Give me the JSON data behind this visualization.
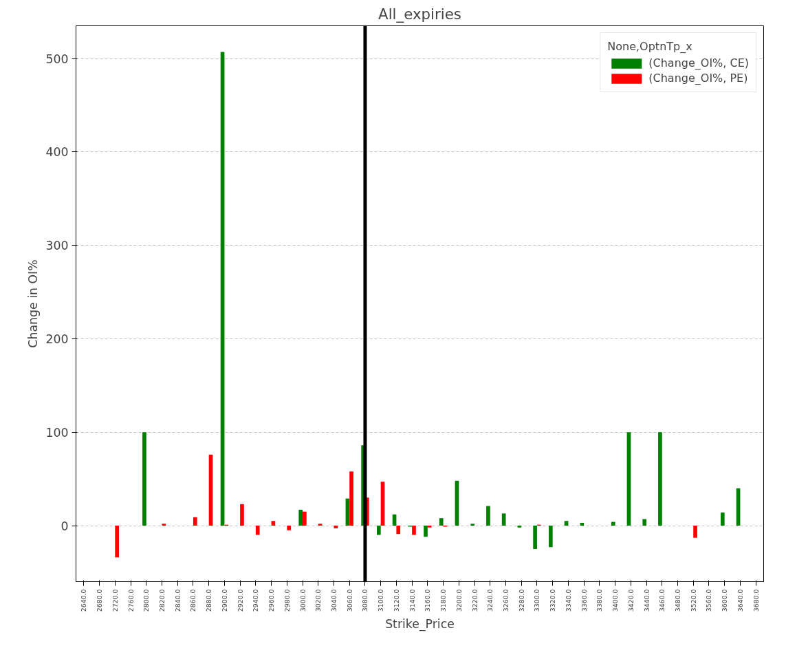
{
  "chart_data": {
    "type": "bar",
    "title": "All_expiries",
    "xlabel": "Strike_Price",
    "ylabel": "Change in OI%",
    "legend_title": "None,OptnTp_x",
    "categories": [
      "2640.0",
      "2680.0",
      "2720.0",
      "2760.0",
      "2800.0",
      "2820.0",
      "2840.0",
      "2860.0",
      "2880.0",
      "2900.0",
      "2920.0",
      "2940.0",
      "2960.0",
      "2980.0",
      "3000.0",
      "3020.0",
      "3040.0",
      "3060.0",
      "3080.0",
      "3100.0",
      "3120.0",
      "3140.0",
      "3160.0",
      "3180.0",
      "3200.0",
      "3220.0",
      "3240.0",
      "3260.0",
      "3280.0",
      "3300.0",
      "3320.0",
      "3340.0",
      "3360.0",
      "3380.0",
      "3400.0",
      "3420.0",
      "3440.0",
      "3460.0",
      "3480.0",
      "3520.0",
      "3560.0",
      "3600.0",
      "3640.0",
      "3680.0"
    ],
    "series": [
      {
        "name": "(Change_OI%, CE)",
        "color": "#008000",
        "values": [
          null,
          null,
          null,
          null,
          100,
          null,
          null,
          null,
          null,
          507,
          null,
          null,
          null,
          null,
          17,
          null,
          null,
          29,
          86,
          -10,
          12,
          -1,
          -12,
          8,
          48,
          2,
          21,
          13,
          -2,
          -25,
          -23,
          5,
          3,
          null,
          4,
          100,
          7,
          100,
          null,
          null,
          null,
          14,
          40,
          null
        ]
      },
      {
        "name": "(Change_OI%, PE)",
        "color": "#ff0000",
        "values": [
          null,
          null,
          -34,
          null,
          null,
          2,
          null,
          9,
          76,
          1,
          23,
          -10,
          5,
          -5,
          15,
          2,
          -3,
          58,
          30,
          47,
          -9,
          -10,
          -2,
          -1,
          null,
          null,
          null,
          null,
          null,
          1,
          null,
          null,
          null,
          null,
          null,
          null,
          null,
          null,
          null,
          -13,
          null,
          null,
          null,
          null
        ]
      }
    ],
    "ylim": [
      -60,
      535
    ],
    "yticks": [
      0,
      100,
      200,
      300,
      400,
      500
    ],
    "ref_lines": [
      {
        "axis": "x",
        "value": "3080.0",
        "color": "#000000"
      }
    ],
    "grid": "y",
    "legend": "top right"
  }
}
